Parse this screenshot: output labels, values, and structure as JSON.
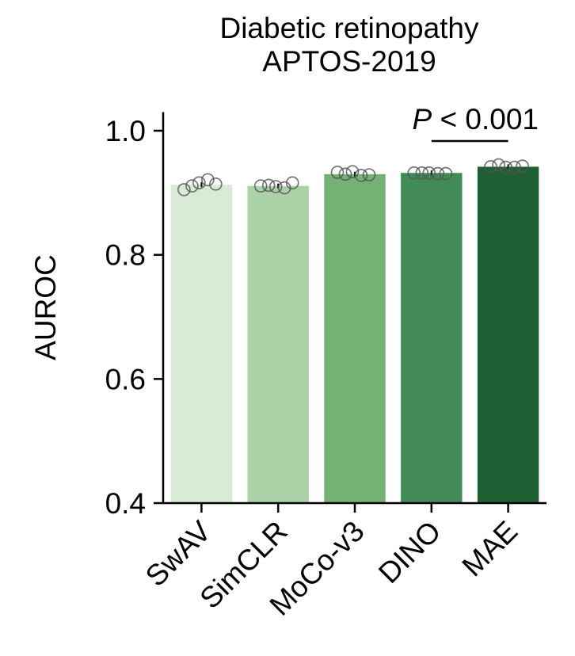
{
  "chart_data": {
    "type": "bar",
    "title": [
      "Diabetic retinopathy",
      "APTOS-2019"
    ],
    "ylabel": "AUROC",
    "xlabel": "",
    "ylim": [
      0.4,
      1.03
    ],
    "yticks": [
      "0.4",
      "0.6",
      "0.8",
      "1.0"
    ],
    "categories": [
      "SwAV",
      "SimCLR",
      "MoCo-v3",
      "DINO",
      "MAE"
    ],
    "values": [
      0.913,
      0.911,
      0.93,
      0.932,
      0.942
    ],
    "colors": [
      "#d9ebd6",
      "#aad2a6",
      "#74b174",
      "#428a57",
      "#1e5f33"
    ],
    "points": [
      [
        0.905,
        0.911,
        0.916,
        0.921,
        0.914
      ],
      [
        0.911,
        0.912,
        0.91,
        0.908,
        0.916
      ],
      [
        0.933,
        0.93,
        0.934,
        0.928,
        0.929
      ],
      [
        0.932,
        0.932,
        0.932,
        0.931,
        0.931
      ],
      [
        0.942,
        0.945,
        0.941,
        0.941,
        0.943
      ]
    ],
    "significance": {
      "from": "DINO",
      "to": "MAE",
      "label_italic": "P",
      "label_rest": " < 0.001"
    },
    "grid": false
  }
}
